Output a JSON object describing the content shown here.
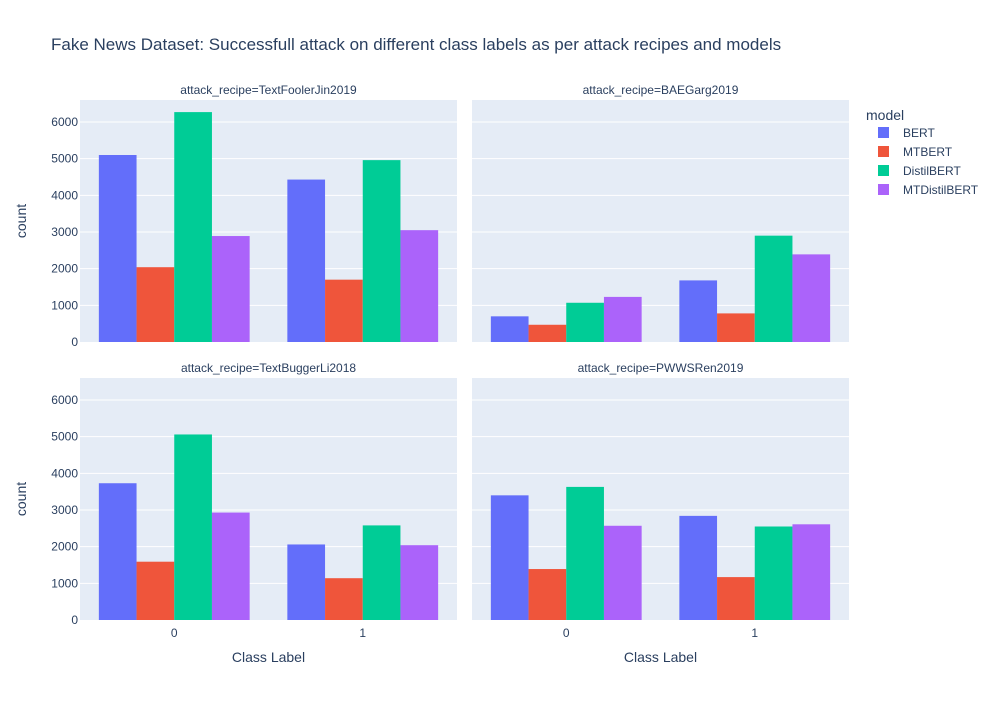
{
  "chart_data": {
    "type": "bar",
    "title": "Fake News Dataset: Successfull attack on different class labels as per attack recipes and models",
    "xlabel": "Class Label",
    "ylabel": "count",
    "categories": [
      "0",
      "1"
    ],
    "ylim": [
      0,
      6600
    ],
    "y_ticks": [
      "0",
      "1000",
      "2000",
      "3000",
      "4000",
      "5000",
      "6000"
    ],
    "grid": true,
    "legend": {
      "title": "model",
      "placement": "right",
      "entries": [
        "BERT",
        "MTBERT",
        "DistilBERT",
        "MTDistilBERT"
      ]
    },
    "colors": {
      "BERT": "#636efa",
      "MTBERT": "#ef553b",
      "DistilBERT": "#00cc96",
      "MTDistilBERT": "#ab63fa",
      "plot_bg": "#e5ecf6",
      "text": "#2a3f5f"
    },
    "panels": [
      {
        "subtitle": "attack_recipe=TextFoolerJin2019",
        "series": [
          {
            "name": "BERT",
            "values": [
              5100,
              4430
            ]
          },
          {
            "name": "MTBERT",
            "values": [
              2040,
              1700
            ]
          },
          {
            "name": "DistilBERT",
            "values": [
              6270,
              4960
            ]
          },
          {
            "name": "MTDistilBERT",
            "values": [
              2890,
              3050
            ]
          }
        ]
      },
      {
        "subtitle": "attack_recipe=BAEGarg2019",
        "series": [
          {
            "name": "BERT",
            "values": [
              700,
              1680
            ]
          },
          {
            "name": "MTBERT",
            "values": [
              470,
              780
            ]
          },
          {
            "name": "DistilBERT",
            "values": [
              1070,
              2900
            ]
          },
          {
            "name": "MTDistilBERT",
            "values": [
              1230,
              2390
            ]
          }
        ]
      },
      {
        "subtitle": "attack_recipe=TextBuggerLi2018",
        "series": [
          {
            "name": "BERT",
            "values": [
              3730,
              2060
            ]
          },
          {
            "name": "MTBERT",
            "values": [
              1590,
              1140
            ]
          },
          {
            "name": "DistilBERT",
            "values": [
              5060,
              2580
            ]
          },
          {
            "name": "MTDistilBERT",
            "values": [
              2930,
              2040
            ]
          }
        ]
      },
      {
        "subtitle": "attack_recipe=PWWSRen2019",
        "series": [
          {
            "name": "BERT",
            "values": [
              3400,
              2840
            ]
          },
          {
            "name": "MTBERT",
            "values": [
              1390,
              1170
            ]
          },
          {
            "name": "DistilBERT",
            "values": [
              3630,
              2550
            ]
          },
          {
            "name": "MTDistilBERT",
            "values": [
              2570,
              2610
            ]
          }
        ]
      }
    ]
  }
}
